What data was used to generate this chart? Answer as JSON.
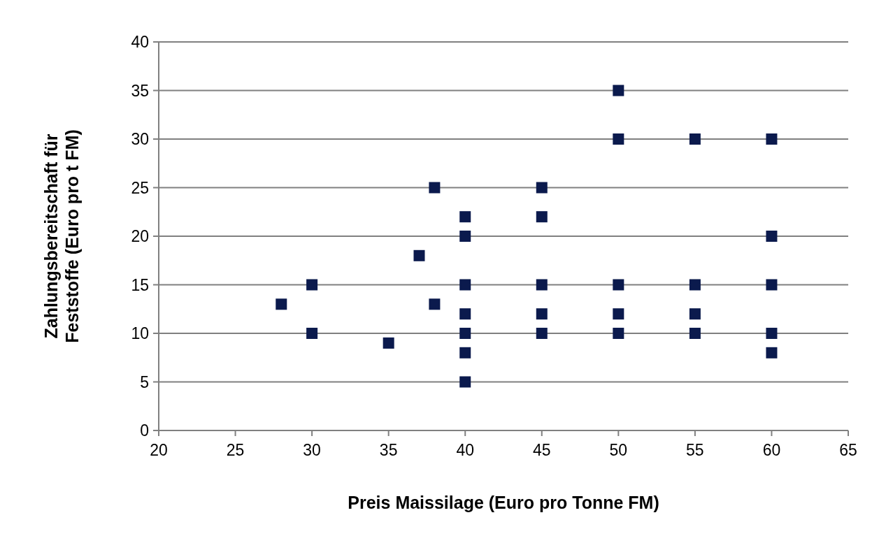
{
  "chart_data": {
    "type": "scatter",
    "xlabel": "Preis Maissilage (Euro pro Tonne FM)",
    "ylabel": "Zahlungsbereitschaft für Feststoffe (Euro pro t FM)",
    "xlim": [
      20,
      65
    ],
    "xticks": [
      20,
      25,
      30,
      35,
      40,
      45,
      50,
      55,
      60,
      65
    ],
    "ylim": [
      0,
      40
    ],
    "yticks": [
      0,
      5,
      10,
      15,
      20,
      25,
      30,
      35,
      40
    ],
    "grid": "y",
    "marker": "square",
    "series": [
      {
        "color": "#0b1a4d",
        "x": [
          28,
          30,
          30,
          35,
          37,
          38,
          38,
          40,
          40,
          40,
          40,
          40,
          40,
          40,
          45,
          45,
          45,
          45,
          45,
          50,
          50,
          50,
          50,
          50,
          55,
          55,
          55,
          55,
          60,
          60,
          60,
          60,
          60
        ],
        "values": [
          13,
          15,
          10,
          9,
          18,
          25,
          13,
          22,
          20,
          15,
          12,
          10,
          8,
          5,
          25,
          22,
          15,
          12,
          10,
          35,
          30,
          15,
          12,
          10,
          30,
          15,
          12,
          10,
          30,
          20,
          15,
          10,
          8
        ]
      }
    ]
  }
}
